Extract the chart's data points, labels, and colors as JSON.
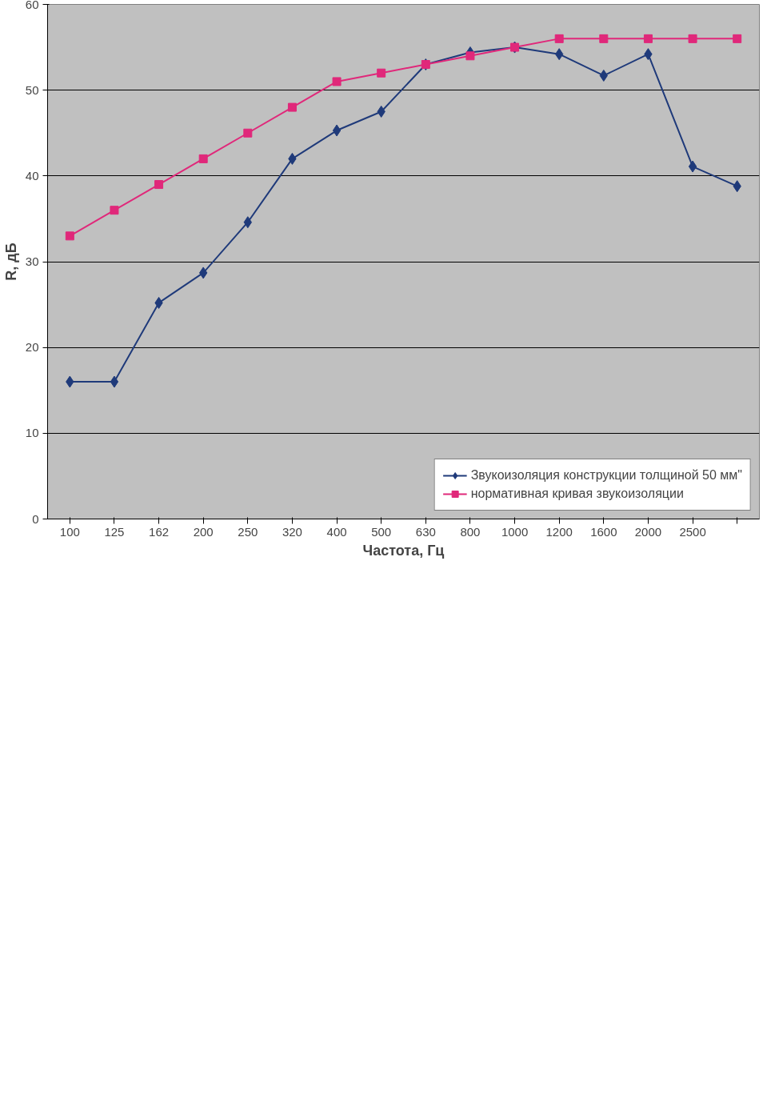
{
  "chart_data": {
    "type": "line",
    "xlabel": "Частота, Гц",
    "ylabel": "R, дБ",
    "categories": [
      "100",
      "125",
      "162",
      "200",
      "250",
      "320",
      "400",
      "500",
      "630",
      "800",
      "1000",
      "1200",
      "1600",
      "2000",
      "2500",
      null
    ],
    "series": [
      {
        "name": "Звукоизоляция конструкции толщиной 50 мм\"",
        "color": "#1f3a7a",
        "marker": "diamond",
        "values": [
          16,
          16,
          25.2,
          28.7,
          34.6,
          42,
          45.3,
          47.5,
          53,
          54.4,
          55,
          54.2,
          51.7,
          54.2,
          41.1,
          38.8
        ]
      },
      {
        "name": "нормативная кривая звукоизоляции",
        "color": "#e0287a",
        "marker": "square",
        "values": [
          33,
          36,
          39,
          42,
          45,
          48,
          51,
          52,
          53,
          54,
          55,
          56,
          56,
          56,
          56,
          56
        ]
      }
    ],
    "ylim": [
      0,
      60
    ],
    "yticks": [
      0,
      10,
      20,
      30,
      40,
      50,
      60
    ],
    "grid": "y",
    "legend": "bottom right"
  }
}
